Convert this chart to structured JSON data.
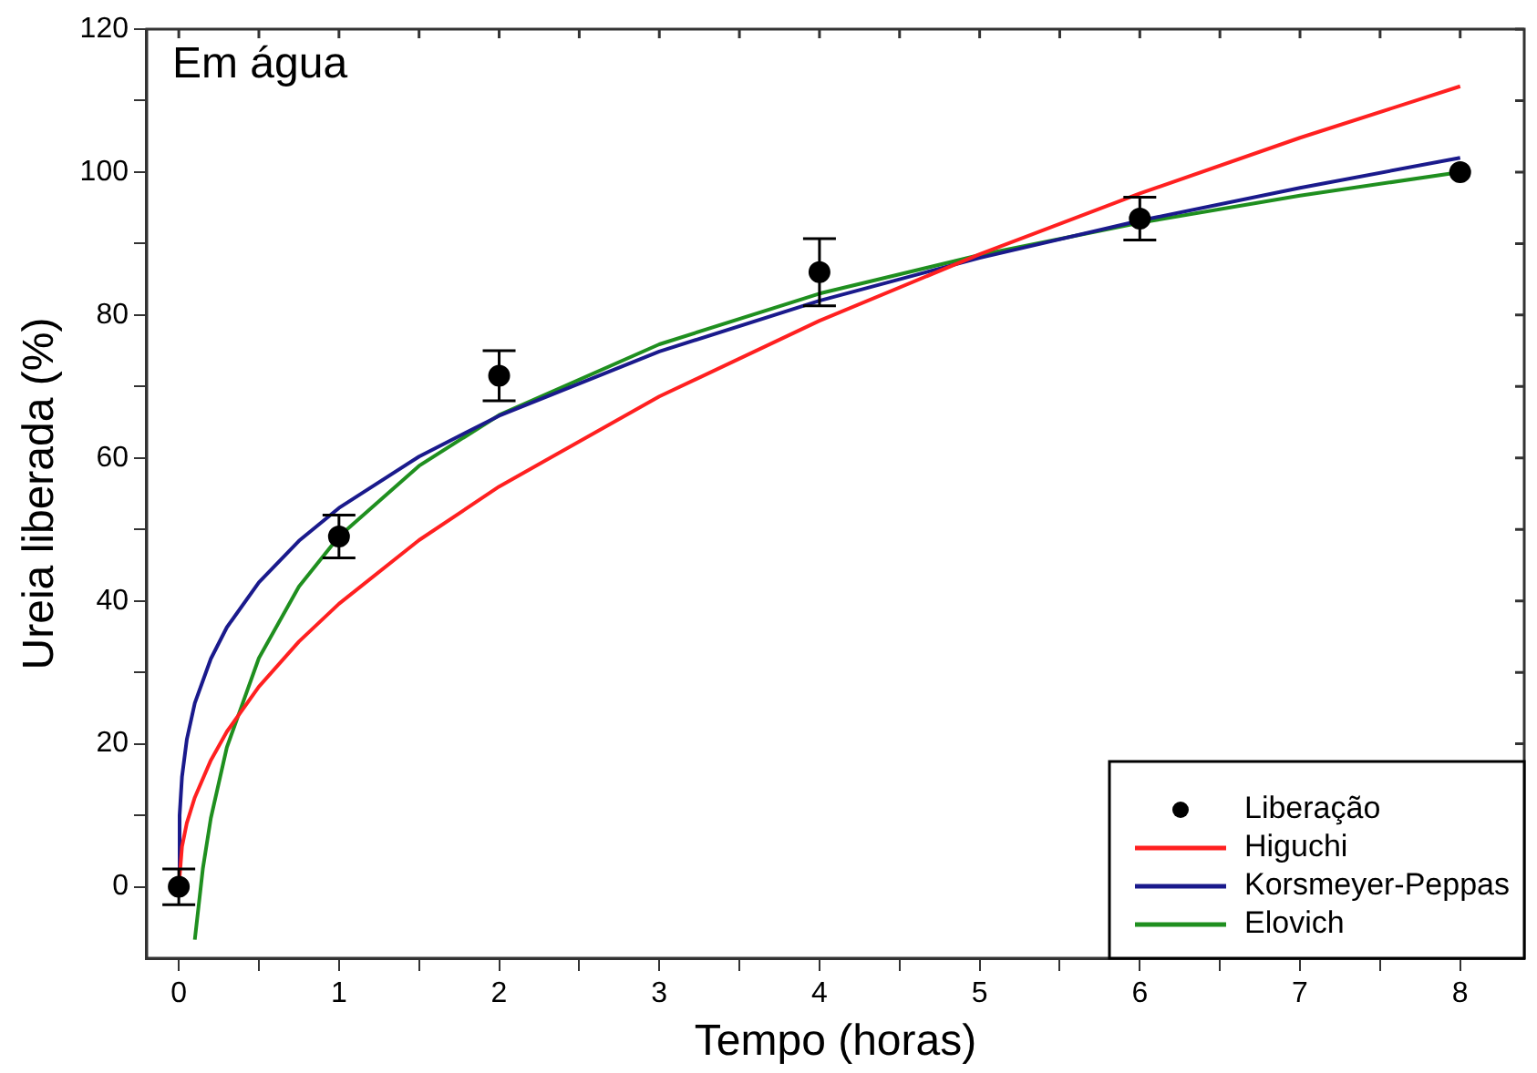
{
  "chart_data": {
    "type": "line",
    "xlabel": "Tempo (horas)",
    "ylabel": "Ureia liberada (%)",
    "annotations": [
      "Em água"
    ],
    "xlim": [
      -0.2,
      8.4
    ],
    "xticks": [
      0,
      {
        "value": 0.5,
        "label": null
      },
      1,
      {
        "value": 1.5,
        "label": null
      },
      2,
      {
        "value": 2.5,
        "label": null
      },
      3,
      {
        "value": 3.5,
        "label": null
      },
      4,
      {
        "value": 4.5,
        "label": null
      },
      5,
      {
        "value": 5.5,
        "label": null
      },
      6,
      {
        "value": 6.5,
        "label": null
      },
      7,
      {
        "value": 7.5,
        "label": null
      },
      8
    ],
    "ylim": [
      -10,
      120
    ],
    "yticks": [
      0,
      {
        "value": 10,
        "label": null
      },
      20,
      {
        "value": 30,
        "label": null
      },
      40,
      {
        "value": 50,
        "label": null
      },
      60,
      {
        "value": 70,
        "label": null
      },
      80,
      {
        "value": 90,
        "label": null
      },
      100,
      {
        "value": 110,
        "label": null
      },
      120
    ],
    "grid": false,
    "legend": "bottom right",
    "series": [
      {
        "name": "Liberação",
        "type": "scatter",
        "marker": "circle",
        "color": "#000000",
        "x": [
          0,
          1,
          2,
          4,
          6,
          8
        ],
        "values": [
          0,
          49,
          71.5,
          86,
          93.5,
          100
        ],
        "errors": [
          2.5,
          3,
          3.5,
          4.7,
          3,
          null
        ]
      },
      {
        "name": "Higuchi",
        "type": "line",
        "marker": "none",
        "color": "#ff2020",
        "x": [
          0,
          0.02,
          0.05,
          0.1,
          0.2,
          0.3,
          0.5,
          0.75,
          1,
          1.5,
          2,
          3,
          4,
          5,
          6,
          7,
          8
        ],
        "values": [
          0,
          5.6,
          8.9,
          12.5,
          17.7,
          21.7,
          28,
          34.3,
          39.6,
          48.5,
          56,
          68.6,
          79.2,
          88.5,
          97,
          104.8,
          112
        ]
      },
      {
        "name": "Korsmeyer-Peppas",
        "type": "line",
        "marker": "none",
        "color": "#1a1a8c",
        "x": [
          0,
          0.005,
          0.02,
          0.05,
          0.1,
          0.2,
          0.3,
          0.5,
          0.75,
          1,
          1.5,
          2,
          3,
          4,
          5,
          6,
          7,
          8
        ],
        "values": [
          0,
          10,
          15.4,
          20.6,
          25.7,
          31.9,
          36.3,
          42.6,
          48.4,
          53,
          60.2,
          65.9,
          74.9,
          82,
          88,
          93.2,
          97.8,
          102
        ]
      },
      {
        "name": "Elovich",
        "type": "line",
        "marker": "none",
        "color": "#1f8f1f",
        "x": [
          0.1,
          0.15,
          0.2,
          0.3,
          0.5,
          0.75,
          1,
          1.5,
          2,
          3,
          4,
          5,
          6,
          7,
          8
        ],
        "values": [
          -7.4,
          2.5,
          9.6,
          19.5,
          32,
          42,
          49,
          58.9,
          66,
          75.9,
          83,
          88.4,
          92.9,
          96.7,
          100
        ]
      }
    ]
  }
}
